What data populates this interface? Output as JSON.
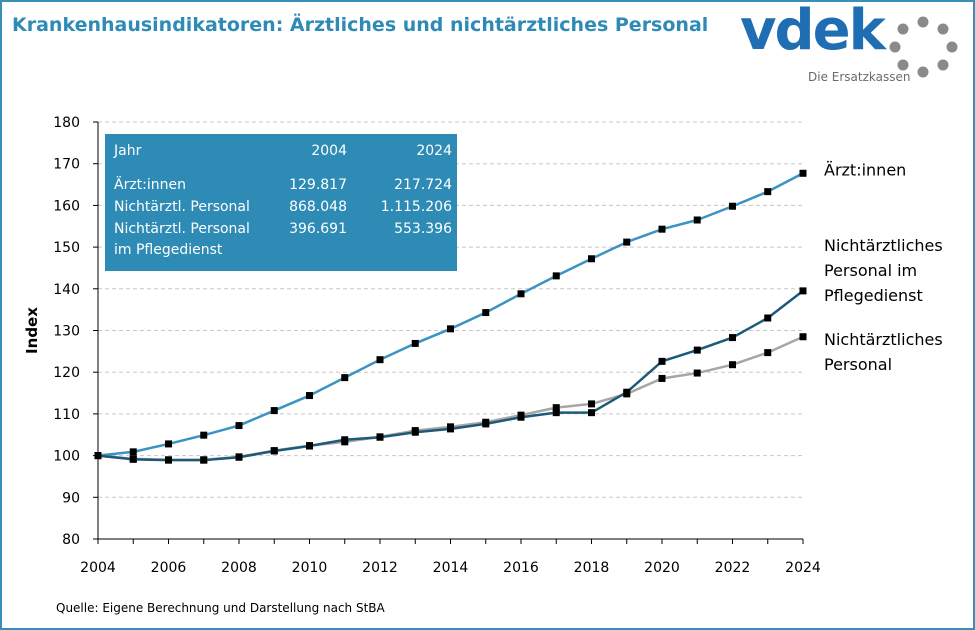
{
  "title": "Krankenhausindikatoren: Ärztliches und nichtärztliches Personal",
  "logo": {
    "word": "vdek",
    "subtitle": "Die Ersatzkassen"
  },
  "source": "Quelle: Eigene Berechnung und Darstellung nach StBA",
  "colors": {
    "accent": "#2e8bb5",
    "aerzte": "#3a93c0",
    "pflege": "#1e5a78",
    "personal": "#a6a6a6"
  },
  "table": {
    "headers": [
      "Jahr",
      "2004",
      "2024"
    ],
    "rows": [
      {
        "label": "Ärzt:innen",
        "v2004": "129.817",
        "v2024": "217.724"
      },
      {
        "label": "Nichtärztl. Personal",
        "v2004": "868.048",
        "v2024": "1.115.206"
      },
      {
        "label": "Nichtärztl. Personal",
        "label2": "im Pflegedienst",
        "v2004": "396.691",
        "v2024": "553.396"
      }
    ]
  },
  "chart_data": {
    "type": "line",
    "title": "Krankenhausindikatoren: Ärztliches und nichtärztliches Personal",
    "xlabel": "",
    "ylabel": "Index",
    "ylim": [
      80,
      180
    ],
    "yticks": [
      80,
      90,
      100,
      110,
      120,
      130,
      140,
      150,
      160,
      170,
      180
    ],
    "xticks": [
      2004,
      2006,
      2008,
      2010,
      2012,
      2014,
      2016,
      2018,
      2020,
      2022,
      2024
    ],
    "x": [
      2004,
      2005,
      2006,
      2007,
      2008,
      2009,
      2010,
      2011,
      2012,
      2013,
      2014,
      2015,
      2016,
      2017,
      2018,
      2019,
      2020,
      2021,
      2022,
      2023,
      2024
    ],
    "grid": true,
    "series": [
      {
        "id": "aerzte",
        "name": "Ärzt:innen",
        "label_lines": [
          "Ärzt:innen"
        ],
        "values": [
          100,
          100.9,
          102.8,
          104.9,
          107.2,
          110.8,
          114.4,
          118.7,
          123.0,
          126.9,
          130.4,
          134.3,
          138.8,
          143.1,
          147.2,
          151.2,
          154.3,
          156.5,
          159.8,
          163.3,
          167.7
        ]
      },
      {
        "id": "personal",
        "name": "Nichtärztliches Personal",
        "label_lines": [
          "Nichtärztliches",
          "Personal"
        ],
        "values": [
          100,
          99.2,
          99.0,
          99.0,
          99.7,
          101.2,
          102.4,
          103.3,
          104.5,
          106.0,
          106.9,
          108.0,
          109.7,
          111.5,
          112.4,
          114.8,
          118.5,
          119.8,
          121.8,
          124.7,
          128.5
        ]
      },
      {
        "id": "pflege",
        "name": "Nichtärztliches Personal im Pflegedienst",
        "label_lines": [
          "Nichtärztliches",
          "Personal im",
          "Pflegedienst"
        ],
        "values": [
          100,
          99.1,
          98.9,
          98.9,
          99.6,
          101.1,
          102.3,
          103.8,
          104.4,
          105.6,
          106.4,
          107.6,
          109.2,
          110.3,
          110.3,
          115.2,
          122.6,
          125.3,
          128.3,
          133.0,
          139.5
        ]
      }
    ]
  }
}
